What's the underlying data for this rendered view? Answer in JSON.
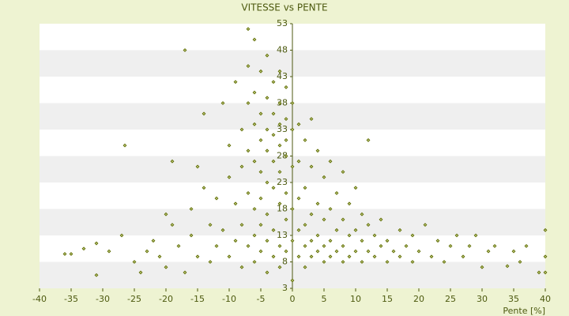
{
  "chart_data": {
    "type": "scatter",
    "title": "VITESSE vs PENTE",
    "x_label": "Pente [%]",
    "xlim": [
      -40,
      40
    ],
    "ylim": [
      3,
      53
    ],
    "xticks": [
      -40,
      -35,
      -30,
      -25,
      -20,
      -15,
      -10,
      -5,
      0,
      5,
      10,
      15,
      20,
      25,
      30,
      35,
      40
    ],
    "yticks": [
      3,
      8,
      13,
      18,
      23,
      28,
      33,
      38,
      43,
      48,
      53
    ],
    "grid": true,
    "color": "#5d6b00",
    "x": [
      -36,
      -35,
      -33,
      -31,
      -31,
      -29,
      -27,
      -26.5,
      -25,
      -24,
      -23,
      -22,
      -21,
      -20,
      -20,
      -19,
      -19,
      -18,
      -17,
      -17,
      -16,
      -16,
      -15,
      -15,
      -14,
      -14,
      -13,
      -13,
      -12,
      -12,
      -11,
      -11,
      -10,
      -10,
      -10,
      -9,
      -9,
      -9,
      -8,
      -8,
      -8,
      -8,
      -7,
      -7,
      -7,
      -7,
      -7,
      -7,
      -6,
      -6,
      -6,
      -6,
      -6,
      -6,
      -6,
      -5,
      -5,
      -5,
      -5,
      -5,
      -5,
      -5,
      -4,
      -4,
      -4,
      -4,
      -4,
      -4,
      -4,
      -4,
      -3,
      -3,
      -3,
      -3,
      -3,
      -3,
      -3,
      -2,
      -2,
      -2,
      -2,
      -2,
      -2,
      -2,
      -2,
      -1,
      -1,
      -1,
      -1,
      -1,
      -1,
      -1,
      0,
      0,
      0,
      0,
      0,
      0,
      1,
      1,
      1,
      1,
      1,
      2,
      2,
      2,
      2,
      2,
      3,
      3,
      3,
      3,
      3,
      4,
      4,
      4,
      4,
      5,
      5,
      5,
      5,
      6,
      6,
      6,
      6,
      7,
      7,
      7,
      8,
      8,
      8,
      8,
      9,
      9,
      9,
      10,
      10,
      10,
      11,
      11,
      11,
      12,
      12,
      12,
      13,
      13,
      14,
      14,
      15,
      15,
      16,
      17,
      17,
      18,
      19,
      19,
      20,
      21,
      22,
      23,
      24,
      25,
      26,
      27,
      28,
      29,
      30,
      31,
      32,
      34,
      35,
      36,
      37,
      39,
      40,
      40,
      40
    ],
    "values": [
      9.5,
      9.5,
      10.5,
      11.5,
      5.5,
      10,
      13,
      30,
      8,
      6,
      10,
      12,
      9,
      7,
      17,
      27,
      15,
      11,
      48,
      6,
      18,
      13,
      26,
      9,
      22,
      36,
      15,
      8,
      20,
      11,
      38,
      14,
      30,
      24,
      9,
      42,
      19,
      12,
      33,
      26,
      15,
      7,
      52,
      45,
      38,
      29,
      21,
      11,
      50,
      40,
      34,
      27,
      18,
      13,
      8,
      44,
      36,
      31,
      25,
      20,
      15,
      10,
      47,
      39,
      33,
      29,
      23,
      17,
      12,
      6,
      42,
      36,
      32,
      27,
      22,
      14,
      9,
      44,
      38,
      34,
      30,
      25,
      19,
      11,
      7,
      41,
      35,
      31,
      28,
      21,
      16,
      10,
      38,
      33,
      26,
      18,
      12,
      4.5,
      34,
      27,
      20,
      14,
      9,
      31,
      22,
      15,
      11,
      7,
      35,
      26,
      17,
      12,
      9,
      29,
      19,
      13,
      10,
      24,
      16,
      11,
      8,
      27,
      18,
      12,
      9,
      21,
      14,
      10,
      25,
      16,
      11,
      8,
      19,
      13,
      9,
      22,
      14,
      10,
      17,
      12,
      8,
      31,
      15,
      10,
      13,
      9,
      16,
      11,
      12,
      8,
      10,
      14,
      9,
      11,
      13,
      8,
      10,
      15,
      9,
      12,
      8,
      11,
      13,
      9,
      11,
      13,
      7,
      10,
      11,
      7.2,
      10,
      8,
      11,
      6,
      9,
      14,
      6
    ]
  }
}
